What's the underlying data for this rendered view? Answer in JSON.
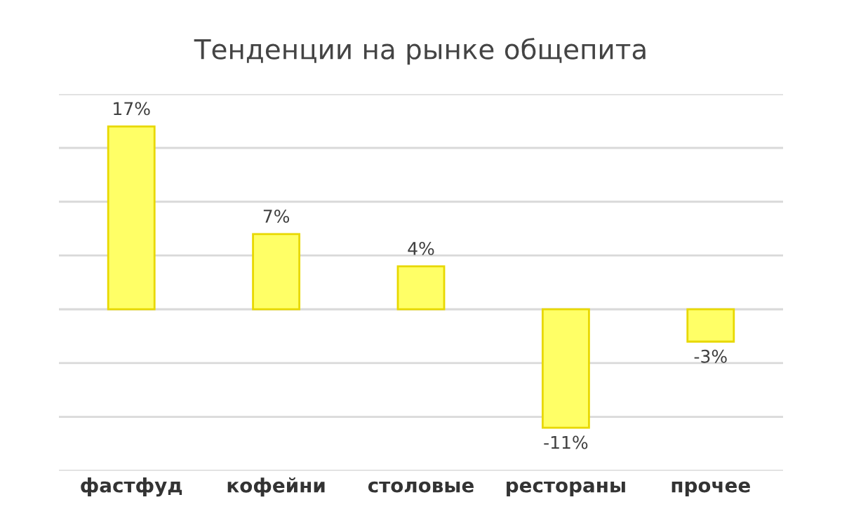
{
  "chart_data": {
    "type": "bar",
    "title": "Тенденции на рынке общепита",
    "categories": [
      "фастфуд",
      "кофейни",
      "столовые",
      "рестораны",
      "прочее"
    ],
    "values": [
      17,
      7,
      4,
      -11,
      -3
    ],
    "value_labels": [
      "17%",
      "7%",
      "4%",
      "-11%",
      "-3%"
    ],
    "color": "#ffff66",
    "ylim": [
      -15,
      20
    ],
    "yticks": [
      {
        "value": -15,
        "label": null
      },
      {
        "value": -10,
        "label": null
      },
      {
        "value": -5,
        "label": null
      },
      {
        "value": 0,
        "label": null
      },
      {
        "value": 5,
        "label": null
      },
      {
        "value": 10,
        "label": null
      },
      {
        "value": 15,
        "label": null
      },
      {
        "value": 20,
        "label": null
      }
    ],
    "tick_labels": "x",
    "grid": "y",
    "legend": false
  }
}
